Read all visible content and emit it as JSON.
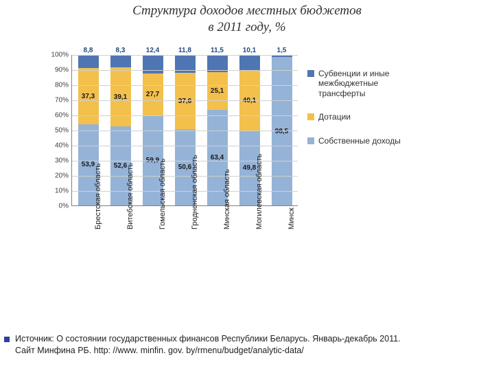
{
  "title_line1": "Структура доходов местных бюджетов",
  "title_line2": "в 2011 году, %",
  "chart": {
    "type": "stacked-bar",
    "ylim": [
      0,
      100
    ],
    "ytick_step": 10,
    "ytick_suffix": "%",
    "colors": {
      "own": "#95b3d7",
      "dot": "#f3c04c",
      "sub": "#5075b3",
      "bg": "#ffffff",
      "grid": "#d0d0d0",
      "top_label": "#1f497d"
    },
    "categories": [
      "Брестская область",
      "Витебская область",
      "Гомельская область",
      "Гродненская область",
      "Минская область",
      "Могилевская область",
      "Минск"
    ],
    "series": [
      {
        "key": "own",
        "label": "Собственные доходы"
      },
      {
        "key": "dot",
        "label": "Дотации"
      },
      {
        "key": "sub",
        "label": "Субвенции и иные межбюджетные трансферты"
      }
    ],
    "data": [
      {
        "own": 53.9,
        "dot": 37.3,
        "sub": 8.8
      },
      {
        "own": 52.6,
        "dot": 39.1,
        "sub": 8.3
      },
      {
        "own": 59.9,
        "dot": 27.7,
        "sub": 12.4
      },
      {
        "own": 50.6,
        "dot": 37.6,
        "sub": 11.8
      },
      {
        "own": 63.4,
        "dot": 25.1,
        "sub": 11.5
      },
      {
        "own": 49.8,
        "dot": 40.1,
        "sub": 10.1
      },
      {
        "own": 98.5,
        "dot": null,
        "sub": 1.5
      }
    ]
  },
  "caption_line1": "Источник:   О состоянии государственных финансов Республики Беларусь. Январь-декабрь 2011.",
  "caption_line2": "Сайт Минфина РБ. http: //www. minfin. gov. by/rmenu/budget/analytic-data/"
}
